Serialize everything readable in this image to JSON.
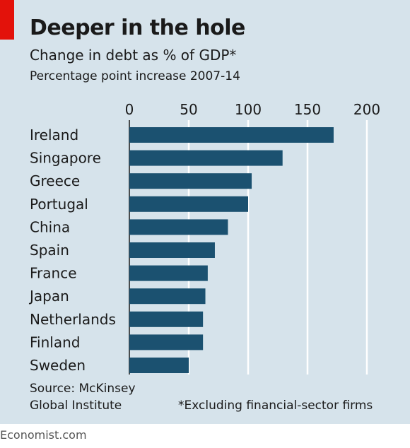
{
  "header": {
    "title": "Deeper in the hole",
    "subtitle": "Change in debt as % of GDP*",
    "subtitle2": "Percentage point increase 2007-14"
  },
  "footer": {
    "source_line1": "Source: McKinsey",
    "source_line2": "Global Institute",
    "footnote": "*Excluding financial-sector firms",
    "brand": "Economist.com"
  },
  "colors": {
    "background": "#d6e3eb",
    "bar": "#1b5170",
    "accent": "#e3120b"
  },
  "chart_data": {
    "type": "bar",
    "orientation": "horizontal",
    "categories": [
      "Ireland",
      "Singapore",
      "Greece",
      "Portugal",
      "China",
      "Spain",
      "France",
      "Japan",
      "Netherlands",
      "Finland",
      "Sweden"
    ],
    "values": [
      172,
      129,
      103,
      100,
      83,
      72,
      66,
      64,
      62,
      62,
      50
    ],
    "xlim": [
      0,
      200
    ],
    "xticks": [
      0,
      50,
      100,
      150,
      200
    ],
    "grid": true,
    "tick_position": "top"
  }
}
